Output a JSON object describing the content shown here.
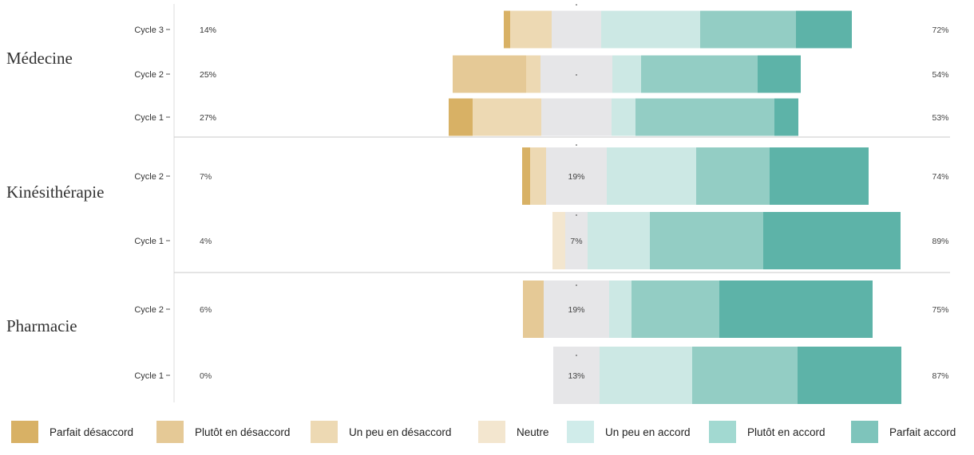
{
  "chart_data": {
    "type": "bar",
    "subtype": "diverging-stacked-likert",
    "categories_order": [
      "Parfait désaccord",
      "Plutôt en désaccord",
      "Un peu en désaccord",
      "Neutre",
      "Un peu en accord",
      "Plutôt en accord",
      "Parfait accord"
    ],
    "colors": [
      "#d8b165",
      "#e5c996",
      "#edd9b3",
      "#f3e6cf",
      "#e6e6e8",
      "#cce8e4",
      "#93cdc4",
      "#5db3a8"
    ],
    "legend_colors": [
      "#d8b165",
      "#e5c996",
      "#edd9b3",
      "#f3e6cf",
      "#d0ecea",
      "#a2d9d1",
      "#7ec4bb"
    ],
    "groups": [
      {
        "name": "Médecine",
        "rows": [
          {
            "label": "Cycle 3",
            "left_pct": "14%",
            "right_pct": "72%",
            "neutral_pct": "",
            "segments": [
              2,
              0,
              13,
              0,
              15.5,
              31,
              30,
              17.5
            ]
          },
          {
            "label": "Cycle 2",
            "left_pct": "25%",
            "right_pct": "54%",
            "neutral_pct": "",
            "segments": [
              0,
              23,
              4.5,
              0,
              22.5,
              9,
              36.5,
              13.5
            ]
          },
          {
            "label": "Cycle 1",
            "left_pct": "27%",
            "right_pct": "53%",
            "neutral_pct": "",
            "segments": [
              7.5,
              0,
              21.5,
              0,
              22,
              7.5,
              43.5,
              7.5
            ]
          }
        ]
      },
      {
        "name": "Kinésithérapie",
        "rows": [
          {
            "label": "Cycle 2",
            "left_pct": "7%",
            "right_pct": "74%",
            "neutral_pct": "19%",
            "segments": [
              2.5,
              0,
              5,
              0,
              19,
              28,
              23,
              31
            ]
          },
          {
            "label": "Cycle 1",
            "left_pct": "4%",
            "right_pct": "89%",
            "neutral_pct": "7%",
            "segments": [
              0,
              0,
              0,
              4,
              7,
              19.5,
              35.5,
              43
            ]
          }
        ]
      },
      {
        "name": "Pharmacie",
        "rows": [
          {
            "label": "Cycle 2",
            "left_pct": "6%",
            "right_pct": "75%",
            "neutral_pct": "19%",
            "segments": [
              0,
              6.5,
              0,
              0,
              20.5,
              7,
              27.5,
              48
            ]
          },
          {
            "label": "Cycle 1",
            "left_pct": "0%",
            "right_pct": "87%",
            "neutral_pct": "13%",
            "segments": [
              0,
              0,
              0,
              0,
              14.5,
              29,
              33,
              32.5
            ]
          }
        ]
      }
    ],
    "legend_labels": [
      "Parfait désaccord",
      "Plutôt en désaccord",
      "Un peu en désaccord",
      "Neutre",
      "Un peu en accord",
      "Plutôt en accord",
      "Parfait accord"
    ],
    "grid": false,
    "legend_position": "bottom"
  }
}
